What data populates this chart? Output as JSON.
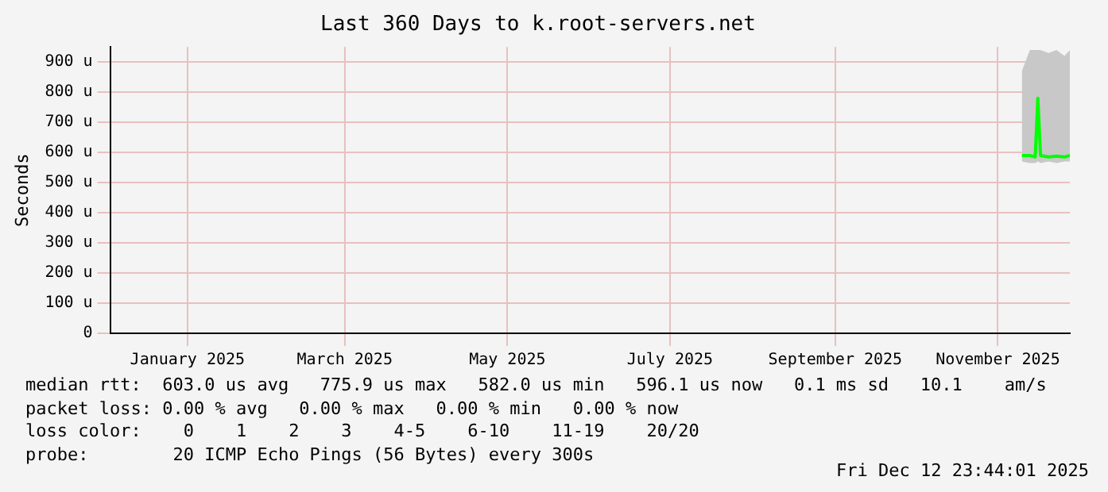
{
  "chart_data": {
    "type": "line",
    "title": "Last 360 Days to k.root-servers.net",
    "ylabel": "Seconds",
    "x": [
      "2025-11-24",
      "2025-11-27",
      "2025-11-29",
      "2025-11-30",
      "2025-12-01",
      "2025-12-04",
      "2025-12-07",
      "2025-12-10",
      "2025-12-12"
    ],
    "series": [
      {
        "color": "#00ff00",
        "values": [
          590,
          590,
          585,
          780,
          590,
          585,
          588,
          585,
          590
        ],
        "lower": [
          570,
          565,
          565,
          570,
          565,
          570,
          565,
          570,
          570
        ],
        "upper": [
          870,
          940,
          940,
          940,
          940,
          930,
          940,
          920,
          940
        ]
      }
    ],
    "xlim": [
      "2024-12-17",
      "2025-12-12"
    ],
    "xticks": [
      {
        "value": "2025-01-15",
        "label": "January 2025"
      },
      {
        "value": "2025-03-15",
        "label": "March 2025"
      },
      {
        "value": "2025-05-15",
        "label": "May 2025"
      },
      {
        "value": "2025-07-15",
        "label": "July 2025"
      },
      {
        "value": "2025-09-15",
        "label": "September 2025"
      },
      {
        "value": "2025-11-15",
        "label": "November 2025"
      }
    ],
    "ylim": [
      0,
      950
    ],
    "yticks": [
      {
        "value": 0,
        "label": "0"
      },
      {
        "value": 100,
        "label": "100 u"
      },
      {
        "value": 200,
        "label": "200 u"
      },
      {
        "value": 300,
        "label": "300 u"
      },
      {
        "value": 400,
        "label": "400 u"
      },
      {
        "value": 500,
        "label": "500 u"
      },
      {
        "value": 600,
        "label": "600 u"
      },
      {
        "value": 700,
        "label": "700 u"
      },
      {
        "value": 800,
        "label": "800 u"
      },
      {
        "value": 900,
        "label": "900 u"
      }
    ],
    "grid": true,
    "legend": false,
    "marker": "none",
    "line_style": "solid",
    "annotations": [
      "median rtt:  603.0 us avg   775.9 us max   582.0 us min   596.1 us now   0.1 ms sd   10.1    am/s",
      "packet loss: 0.00 % avg   0.00 % max   0.00 % min   0.00 % now",
      "loss color:    0    1    2    3    4-5    6-10    11-19    20/20",
      "probe:        20 ICMP Echo Pings (56 Bytes) every 300s",
      "Fri Dec 12 23:44:01 2025"
    ]
  }
}
